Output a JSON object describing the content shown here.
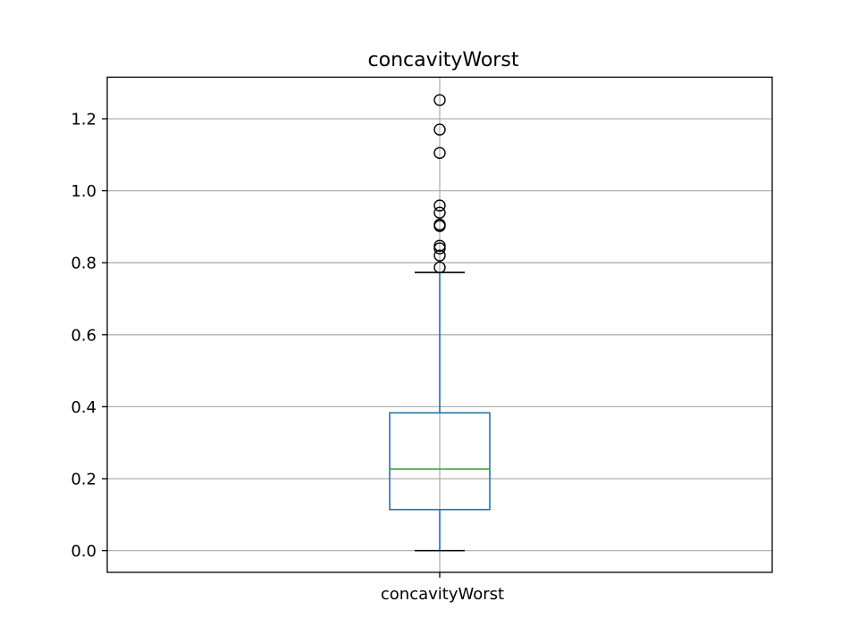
{
  "chart_data": {
    "type": "box",
    "title": "concavityWorst",
    "xlabel": "",
    "ylabel": "",
    "categories": [
      "concavityWorst"
    ],
    "ylim": [
      -0.06,
      1.3156
    ],
    "yticks": [
      0.0,
      0.2,
      0.4,
      0.6,
      0.8,
      1.0,
      1.2
    ],
    "ytick_labels": [
      "0.0",
      "0.2",
      "0.4",
      "0.6",
      "0.8",
      "1.0",
      "1.2"
    ],
    "grid": true,
    "box": {
      "whisker_low": 0.0,
      "q1": 0.114,
      "median": 0.227,
      "q3": 0.383,
      "whisker_high": 0.773
    },
    "outliers": [
      0.787,
      0.82,
      0.84,
      0.847,
      0.902,
      0.906,
      0.939,
      0.959,
      1.105,
      1.17,
      1.252
    ],
    "colors": {
      "box": "#1f77b4",
      "median": "#2ca02c",
      "caps": "#000000",
      "outlier": "#000000",
      "grid": "#b0b0b0"
    }
  }
}
